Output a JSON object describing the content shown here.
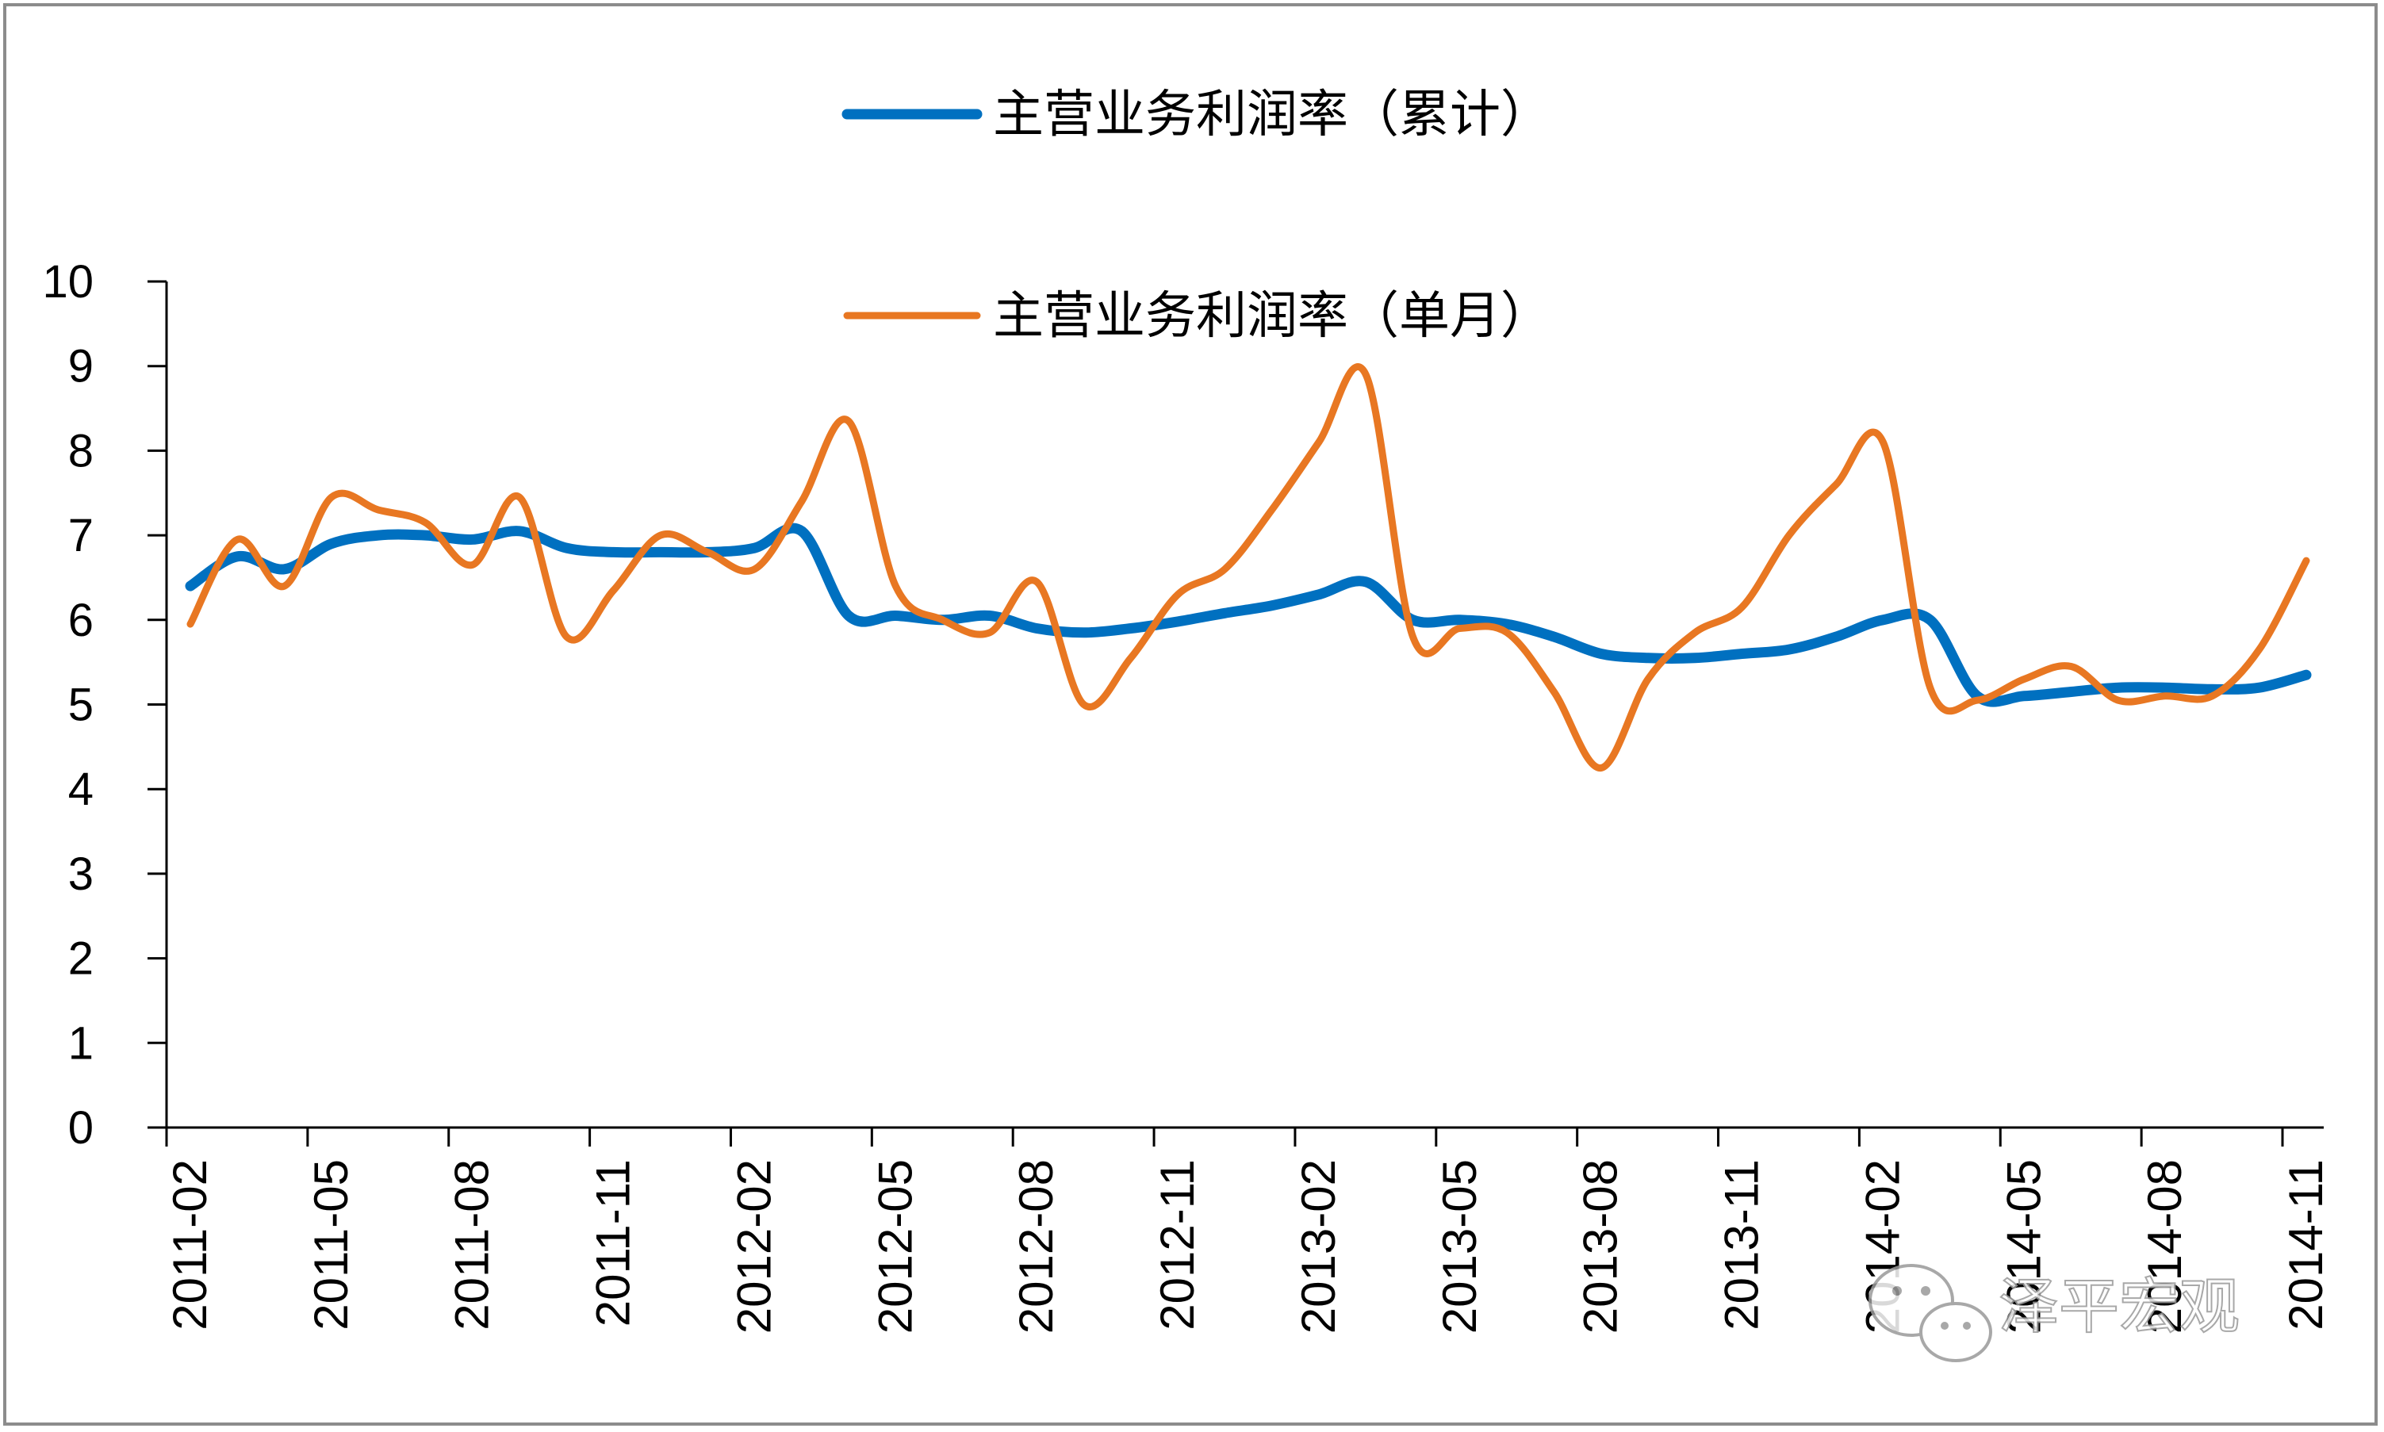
{
  "chart_data": {
    "type": "line",
    "title": "",
    "xlabel": "",
    "ylabel": "",
    "ylim": [
      0,
      10
    ],
    "yticks": [
      0,
      1,
      2,
      3,
      4,
      5,
      6,
      7,
      8,
      9,
      10
    ],
    "grid": false,
    "legend_position": "top-center",
    "x": [
      "2011-02",
      "2011-03",
      "2011-04",
      "2011-05",
      "2011-06",
      "2011-07",
      "2011-08",
      "2011-09",
      "2011-10",
      "2011-11",
      "2011-12",
      "2012-01",
      "2012-02",
      "2012-03",
      "2012-04",
      "2012-05",
      "2012-06",
      "2012-07",
      "2012-08",
      "2012-09",
      "2012-10",
      "2012-11",
      "2012-12",
      "2013-01",
      "2013-02",
      "2013-03",
      "2013-04",
      "2013-05",
      "2013-06",
      "2013-07",
      "2013-08",
      "2013-09",
      "2013-10",
      "2013-11",
      "2013-12",
      "2014-01",
      "2014-02",
      "2014-03",
      "2014-04",
      "2014-05",
      "2014-06",
      "2014-07",
      "2014-08",
      "2014-09",
      "2014-10",
      "2014-11"
    ],
    "x_tick_labels": [
      "2011-02",
      "2011-05",
      "2011-08",
      "2011-11",
      "2012-02",
      "2012-05",
      "2012-08",
      "2012-11",
      "2013-02",
      "2013-05",
      "2013-08",
      "2013-11",
      "2014-02",
      "2014-05",
      "2014-08",
      "2014-11"
    ],
    "series": [
      {
        "name": "主营业务利润率（累计）",
        "color": "#0070C0",
        "values": [
          6.4,
          6.75,
          6.6,
          6.9,
          7.0,
          7.0,
          6.95,
          7.05,
          6.85,
          6.8,
          6.8,
          6.8,
          6.85,
          7.05,
          6.05,
          6.05,
          6.0,
          6.05,
          5.9,
          5.85,
          5.9,
          5.98,
          6.08,
          6.17,
          6.3,
          6.45,
          6.0,
          6.0,
          5.95,
          5.8,
          5.6,
          5.55,
          5.55,
          5.6,
          5.65,
          5.8,
          6.0,
          6.0,
          5.1,
          5.1,
          5.15,
          5.2,
          5.2,
          5.18,
          5.2,
          5.35
        ]
      },
      {
        "name": "主营业务利润率（单月）",
        "color": "#E87722",
        "values": [
          5.95,
          6.95,
          6.4,
          7.45,
          7.3,
          7.15,
          6.65,
          7.45,
          5.8,
          6.35,
          7.0,
          6.8,
          6.6,
          7.4,
          8.35,
          6.4,
          6.0,
          5.85,
          6.45,
          5.0,
          5.55,
          6.3,
          6.6,
          7.3,
          8.1,
          8.9,
          5.8,
          5.9,
          5.85,
          5.15,
          4.25,
          5.3,
          5.85,
          6.15,
          7.0,
          7.6,
          8.1,
          5.2,
          5.05,
          5.3,
          5.45,
          5.05,
          5.1,
          5.1,
          5.65,
          6.7
        ]
      }
    ]
  },
  "watermark": {
    "text": "泽平宏观",
    "icon": "wechat-icon"
  }
}
